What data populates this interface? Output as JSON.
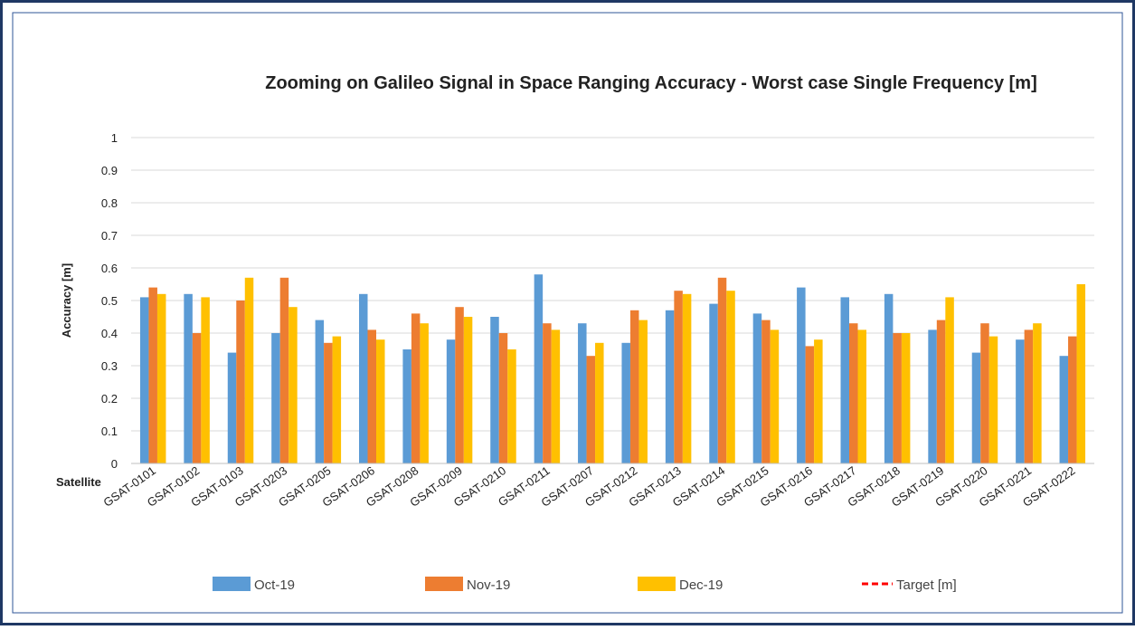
{
  "chart_data": {
    "type": "bar",
    "title": "Zooming on Galileo Signal in Space Ranging Accuracy - Worst case Single Frequency [m]",
    "x_label": "Satellite",
    "y_label": "Accuracy  [m]",
    "categories": [
      "GSAT-0101",
      "GSAT-0102",
      "GSAT-0103",
      "GSAT-0203",
      "GSAT-0205",
      "GSAT-0206",
      "GSAT-0208",
      "GSAT-0209",
      "GSAT-0210",
      "GSAT-0211",
      "GSAT-0207",
      "GSAT-0212",
      "GSAT-0213",
      "GSAT-0214",
      "GSAT-0215",
      "GSAT-0216",
      "GSAT-0217",
      "GSAT-0218",
      "GSAT-0219",
      "GSAT-0220",
      "GSAT-0221",
      "GSAT-0222"
    ],
    "series": [
      {
        "name": "Oct-19",
        "color": "#5b9bd5",
        "values": [
          0.51,
          0.52,
          0.34,
          0.4,
          0.44,
          0.52,
          0.35,
          0.38,
          0.45,
          0.58,
          0.43,
          0.37,
          0.47,
          0.49,
          0.46,
          0.54,
          0.51,
          0.52,
          0.41,
          0.34,
          0.38,
          0.33
        ]
      },
      {
        "name": "Nov-19",
        "color": "#ed7d31",
        "values": [
          0.54,
          0.4,
          0.5,
          0.57,
          0.37,
          0.41,
          0.46,
          0.48,
          0.4,
          0.43,
          0.33,
          0.47,
          0.53,
          0.57,
          0.44,
          0.36,
          0.43,
          0.4,
          0.44,
          0.43,
          0.41,
          0.39
        ]
      },
      {
        "name": "Dec-19",
        "color": "#ffc000",
        "values": [
          0.52,
          0.51,
          0.57,
          0.48,
          0.39,
          0.38,
          0.43,
          0.45,
          0.35,
          0.41,
          0.37,
          0.44,
          0.52,
          0.53,
          0.41,
          0.38,
          0.41,
          0.4,
          0.51,
          0.39,
          0.43,
          0.55
        ]
      },
      {
        "name": "Target [m]",
        "color": "#ff0000",
        "line": "dashed",
        "values": [
          null,
          null,
          null,
          null,
          null,
          null,
          null,
          null,
          null,
          null,
          null,
          null,
          null,
          null,
          null,
          null,
          null,
          null,
          null,
          null,
          null,
          null
        ]
      }
    ],
    "ylim": [
      0,
      1
    ],
    "yticks": [
      0,
      0.1,
      0.2,
      0.3,
      0.4,
      0.5,
      0.6,
      0.7,
      0.8,
      0.9,
      1
    ],
    "grid": true
  }
}
